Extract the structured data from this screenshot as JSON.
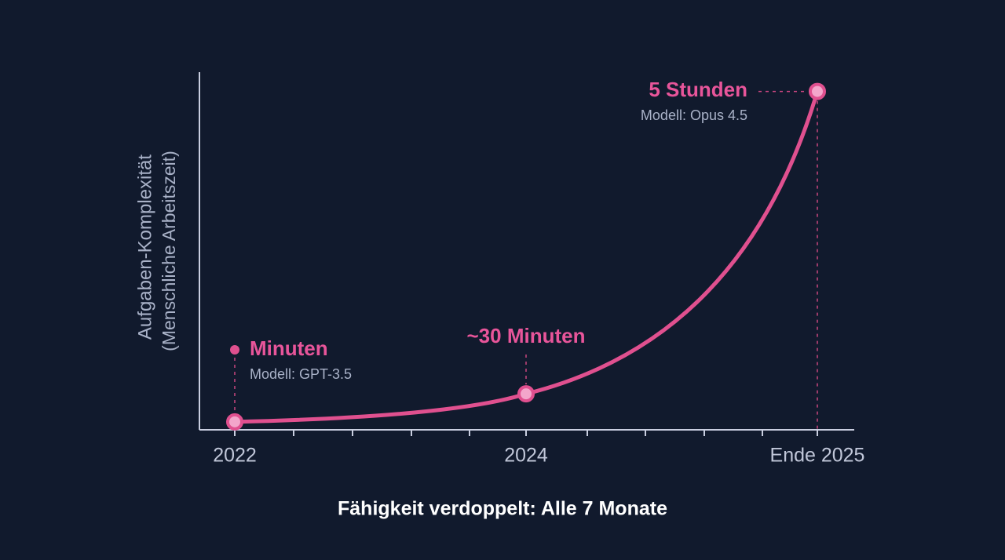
{
  "chart_data": {
    "type": "line",
    "y_label": "Aufgaben-Komplexität",
    "y_label_note": "(Menschliche Arbeitszeit)",
    "caption": "Fähigkeit verdoppelt: Alle 7 Monate",
    "categories": [
      "2022",
      "2024",
      "Ende 2025"
    ],
    "values": [
      5,
      30,
      300
    ],
    "value_labels": [
      "Minuten",
      "~30 Minuten",
      "5 Stunden"
    ],
    "annotations": [
      "Modell: GPT-3.5",
      null,
      "Modell: Opus 4.5"
    ],
    "ylim": [
      0,
      320
    ],
    "color": "#e0508f"
  }
}
